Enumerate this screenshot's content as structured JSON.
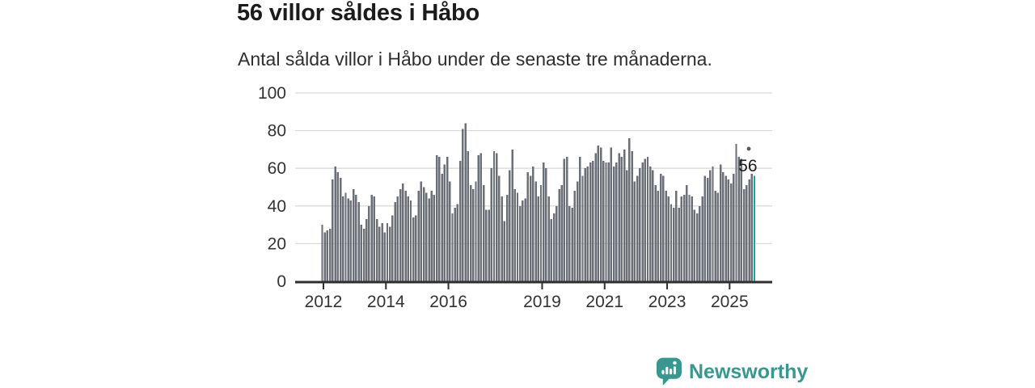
{
  "header": {
    "title": "56 villor såldes i Håbo",
    "subtitle": "Antal sålda villor i Håbo under de senaste tre månaderna."
  },
  "chart_data": {
    "type": "bar",
    "title": "56 villor såldes i Håbo",
    "subtitle": "Antal sålda villor i Håbo under de senaste tre månaderna.",
    "x_start": "2012-01",
    "x_end": "2025-11",
    "x_frequency": "monthly",
    "values": [
      30,
      26,
      27,
      28,
      54,
      61,
      58,
      55,
      45,
      47,
      44,
      43,
      49,
      46,
      42,
      30,
      28,
      33,
      40,
      46,
      45,
      33,
      29,
      31,
      26,
      31,
      29,
      35,
      42,
      45,
      49,
      52,
      48,
      45,
      43,
      34,
      35,
      48,
      53,
      50,
      47,
      44,
      48,
      46,
      67,
      66,
      57,
      62,
      66,
      53,
      36,
      39,
      41,
      64,
      81,
      84,
      69,
      51,
      49,
      53,
      67,
      68,
      51,
      38,
      38,
      60,
      69,
      68,
      56,
      45,
      32,
      46,
      59,
      70,
      49,
      47,
      40,
      43,
      44,
      58,
      56,
      61,
      53,
      45,
      51,
      63,
      60,
      45,
      33,
      36,
      40,
      49,
      51,
      65,
      66,
      40,
      39,
      48,
      53,
      66,
      56,
      60,
      61,
      63,
      64,
      68,
      72,
      71,
      64,
      63,
      63,
      71,
      61,
      63,
      68,
      66,
      70,
      59,
      76,
      69,
      53,
      56,
      60,
      63,
      65,
      66,
      61,
      59,
      51,
      48,
      57,
      56,
      48,
      45,
      41,
      39,
      48,
      39,
      45,
      46,
      51,
      46,
      45,
      38,
      36,
      40,
      45,
      56,
      55,
      59,
      61,
      48,
      47,
      62,
      58,
      56,
      54,
      52,
      57,
      73,
      66,
      65,
      49,
      51,
      54,
      57,
      56
    ],
    "highlight": {
      "index": 166,
      "value": 56,
      "label": "56",
      "color": "#14a7a0"
    },
    "bar_color": "#6b6f77",
    "ylim": [
      0,
      100
    ],
    "y_ticks": [
      0,
      20,
      40,
      60,
      80,
      100
    ],
    "x_ticks": [
      {
        "label": "2012",
        "year_offset": 0
      },
      {
        "label": "2014",
        "year_offset": 2
      },
      {
        "label": "2016",
        "year_offset": 4
      },
      {
        "label": "2019",
        "year_offset": 7
      },
      {
        "label": "2021",
        "year_offset": 9
      },
      {
        "label": "2023",
        "year_offset": 11
      },
      {
        "label": "2025",
        "year_offset": 13
      }
    ],
    "grid": "horizontal",
    "gridline_color": "#dbdbdb",
    "axis_color": "#2f2f2f",
    "tick_label_color": "#333333",
    "legend": "none"
  },
  "footer": {
    "brand": "Newsworthy",
    "brand_color": "#38978f"
  }
}
